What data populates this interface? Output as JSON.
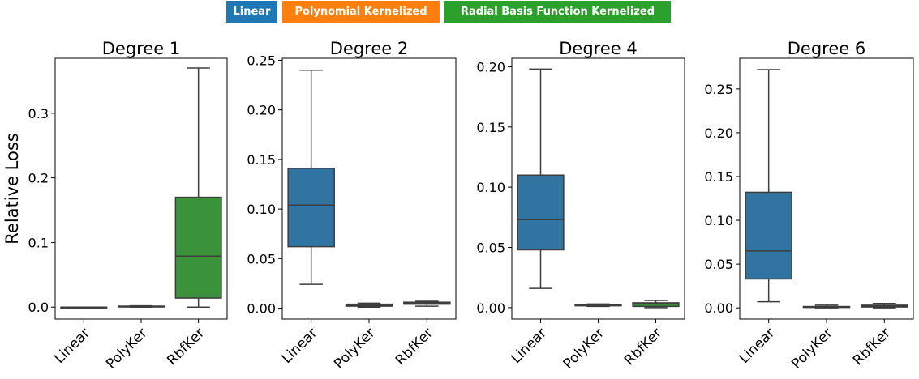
{
  "legend": [
    {
      "label": "Linear",
      "color": "#1f77b4"
    },
    {
      "label": "Polynomial Kernelized",
      "color": "#ff7f0e"
    },
    {
      "label": "Radial Basis Function Kernelized",
      "color": "#2ca02c"
    }
  ],
  "colors": {
    "linear": "#3274a1",
    "poly": "#e1812c",
    "rbf": "#3a923a",
    "line": "#3d3d3d"
  },
  "chart_data": [
    {
      "type": "box",
      "title": "Degree 1",
      "ylabel": "Relative Loss",
      "categories": [
        "Linear",
        "PolyKer",
        "RbfKer"
      ],
      "ylim": [
        -0.0185,
        0.385
      ],
      "yticks": [
        "0.0",
        "0.1",
        "0.2",
        "0.3"
      ],
      "ytick_values": [
        0.0,
        0.1,
        0.2,
        0.3
      ],
      "boxes": [
        {
          "whislo": 0.0,
          "q1": 0.0,
          "med": 0.0,
          "q3": 0.0,
          "whishi": 0.0
        },
        {
          "whislo": 0.0,
          "q1": 0.0005,
          "med": 0.001,
          "q3": 0.0015,
          "whishi": 0.002
        },
        {
          "whislo": 0.0,
          "q1": 0.014,
          "med": 0.079,
          "q3": 0.17,
          "whishi": 0.37
        }
      ]
    },
    {
      "type": "box",
      "title": "Degree 2",
      "ylabel": "",
      "categories": [
        "Linear",
        "PolyKer",
        "RbfKer"
      ],
      "ylim": [
        -0.011,
        0.252
      ],
      "yticks": [
        "0.00",
        "0.05",
        "0.10",
        "0.15",
        "0.20",
        "0.25"
      ],
      "ytick_values": [
        0.0,
        0.05,
        0.1,
        0.15,
        0.2,
        0.25
      ],
      "boxes": [
        {
          "whislo": 0.024,
          "q1": 0.062,
          "med": 0.104,
          "q3": 0.141,
          "whishi": 0.24
        },
        {
          "whislo": 0.001,
          "q1": 0.002,
          "med": 0.003,
          "q3": 0.004,
          "whishi": 0.005
        },
        {
          "whislo": 0.002,
          "q1": 0.004,
          "med": 0.005,
          "q3": 0.006,
          "whishi": 0.007
        }
      ]
    },
    {
      "type": "box",
      "title": "Degree 4",
      "ylabel": "",
      "categories": [
        "Linear",
        "PolyKer",
        "RbfKer"
      ],
      "ylim": [
        -0.0095,
        0.207
      ],
      "yticks": [
        "0.00",
        "0.05",
        "0.10",
        "0.15",
        "0.20"
      ],
      "ytick_values": [
        0.0,
        0.05,
        0.1,
        0.15,
        0.2
      ],
      "boxes": [
        {
          "whislo": 0.016,
          "q1": 0.048,
          "med": 0.073,
          "q3": 0.11,
          "whishi": 0.198
        },
        {
          "whislo": 0.001,
          "q1": 0.0015,
          "med": 0.002,
          "q3": 0.0025,
          "whishi": 0.003
        },
        {
          "whislo": 0.0,
          "q1": 0.001,
          "med": 0.003,
          "q3": 0.004,
          "whishi": 0.006
        }
      ]
    },
    {
      "type": "box",
      "title": "Degree 6",
      "ylabel": "",
      "categories": [
        "Linear",
        "PolyKer",
        "RbfKer"
      ],
      "ylim": [
        -0.0128,
        0.285
      ],
      "yticks": [
        "0.00",
        "0.05",
        "0.10",
        "0.15",
        "0.20",
        "0.25"
      ],
      "ytick_values": [
        0.0,
        0.05,
        0.1,
        0.15,
        0.2,
        0.25
      ],
      "boxes": [
        {
          "whislo": 0.007,
          "q1": 0.033,
          "med": 0.065,
          "q3": 0.132,
          "whishi": 0.272
        },
        {
          "whislo": 0.0,
          "q1": 0.0005,
          "med": 0.001,
          "q3": 0.0015,
          "whishi": 0.003
        },
        {
          "whislo": 0.0,
          "q1": 0.001,
          "med": 0.002,
          "q3": 0.003,
          "whishi": 0.005
        }
      ]
    }
  ]
}
